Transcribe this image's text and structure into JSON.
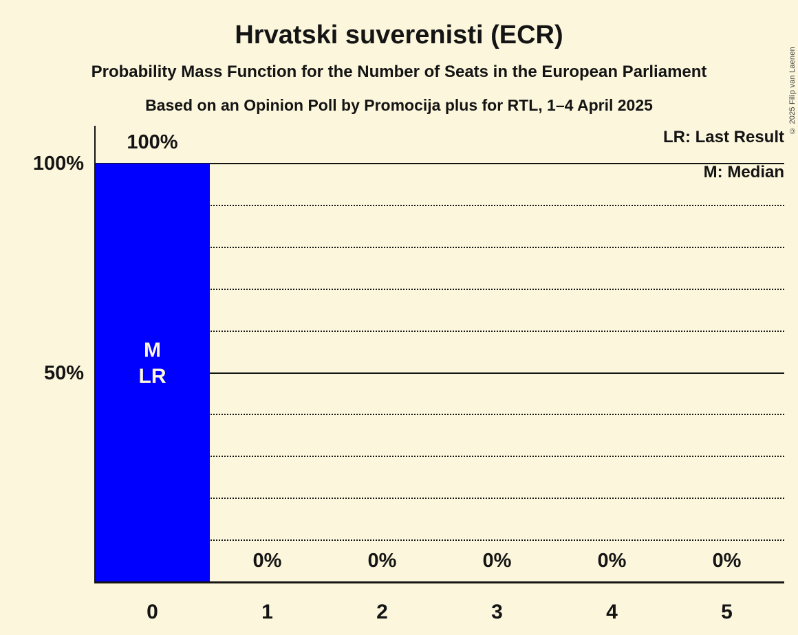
{
  "title": "Hrvatski suverenisti (ECR)",
  "subtitle": "Probability Mass Function for the Number of Seats in the European Parliament",
  "source_line": "Based on an Opinion Poll by Promocija plus for RTL, 1–4 April 2025",
  "copyright_notice": "© 2025 Filip van Laenen",
  "legend": {
    "last_result": "LR: Last Result",
    "median": "M: Median"
  },
  "colors": {
    "background": "#FCF7DC",
    "bar": "#0000FF",
    "text": "#141414",
    "bar_label_text": "#FCF7DC"
  },
  "chart_data": {
    "type": "bar",
    "title": "Hrvatski suverenisti (ECR)",
    "categories": [
      "0",
      "1",
      "2",
      "3",
      "4",
      "5"
    ],
    "values": [
      100,
      0,
      0,
      0,
      0,
      0
    ],
    "value_labels": [
      "100%",
      "0%",
      "0%",
      "0%",
      "0%",
      "0%"
    ],
    "ylim": [
      0,
      100
    ],
    "yticks": [
      {
        "pct": 100,
        "label": "100%"
      },
      {
        "pct": 50,
        "label": "50%"
      }
    ],
    "gridlines": {
      "solid_pct": [
        100,
        50
      ],
      "dotted_pct": [
        90,
        80,
        70,
        60,
        40,
        30,
        20,
        10
      ]
    },
    "bar_annotations": [
      {
        "category": "0",
        "lines": [
          "M",
          "LR"
        ]
      }
    ],
    "legend_position": "top-right",
    "grid": "dotted minor, solid major"
  }
}
